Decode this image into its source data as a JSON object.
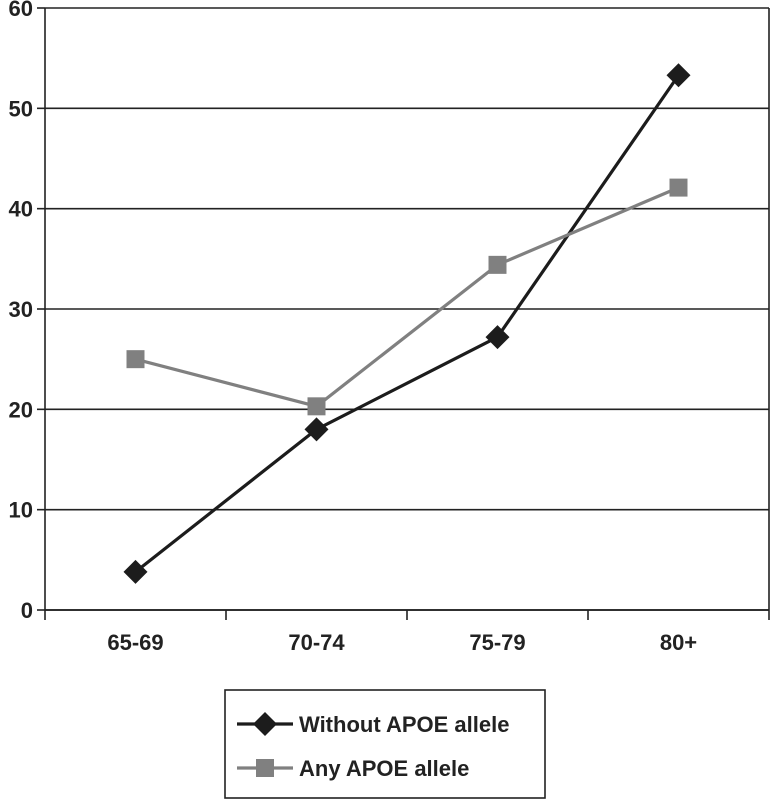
{
  "chart_data": {
    "type": "line",
    "title": "",
    "xlabel": "",
    "ylabel": "",
    "categories": [
      "65-69",
      "70-74",
      "75-79",
      "80+"
    ],
    "ylim": [
      0,
      60
    ],
    "yticks": [
      "0",
      "10",
      "20",
      "30",
      "40",
      "50",
      "60"
    ],
    "grid": true,
    "legend_position": "bottom-center",
    "series": [
      {
        "name": "Without APOE allele",
        "values": [
          3.8,
          18.0,
          27.2,
          53.3
        ],
        "color": "#1c1c1c",
        "marker": "diamond"
      },
      {
        "name": "Any APOE allele",
        "values": [
          25.0,
          20.3,
          34.4,
          42.1
        ],
        "color": "#808080",
        "marker": "square"
      }
    ]
  }
}
